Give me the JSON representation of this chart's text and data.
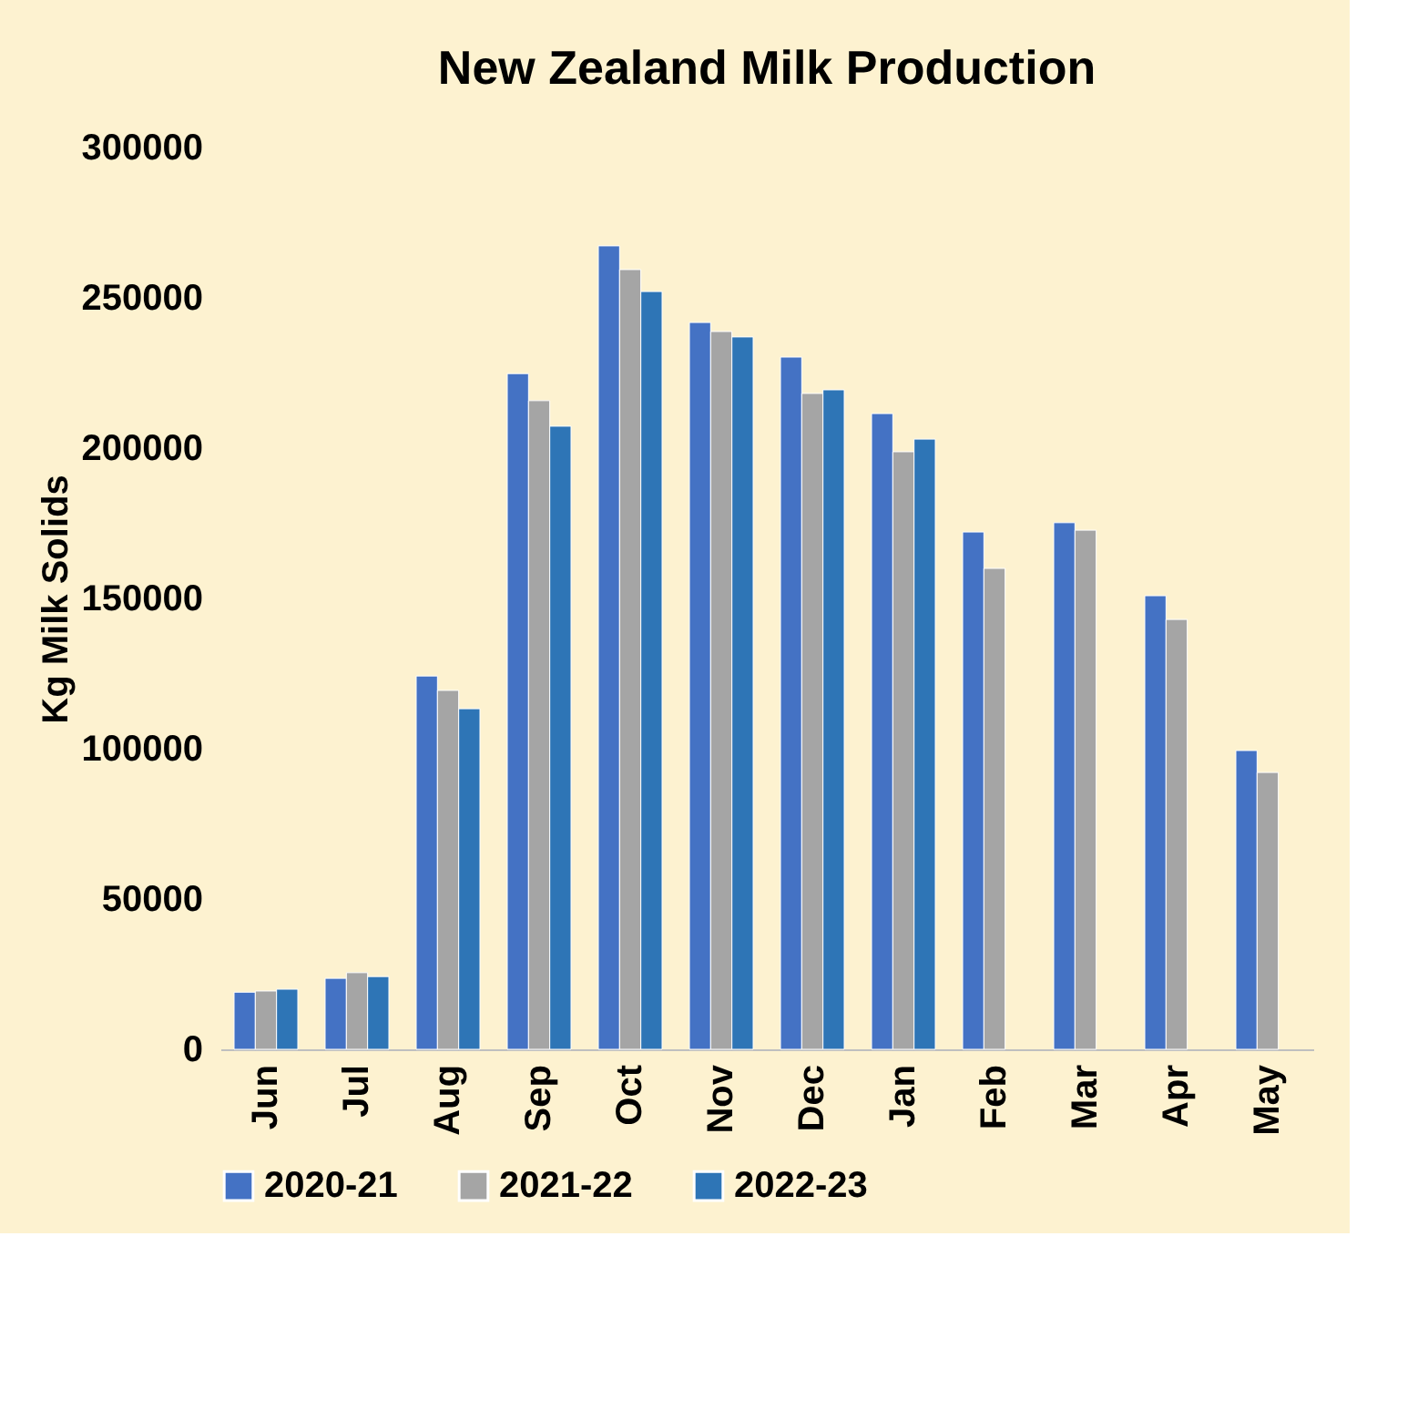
{
  "chart_data": {
    "type": "bar",
    "title": "New Zealand Milk Production",
    "ylabel": "Kg Milk Solids",
    "categories": [
      "Jun",
      "Jul",
      "Aug",
      "Sep",
      "Oct",
      "Nov",
      "Dec",
      "Jan",
      "Feb",
      "Mar",
      "Apr",
      "May"
    ],
    "series": [
      {
        "name": "2020-21",
        "color": "#4472c4",
        "values": [
          19000,
          23600,
          124200,
          224800,
          267300,
          241800,
          230300,
          211500,
          172100,
          175200,
          150900,
          99400
        ]
      },
      {
        "name": "2021-22",
        "color": "#a5a5a5",
        "values": [
          19400,
          25500,
          119400,
          215800,
          259400,
          238800,
          218200,
          198800,
          160000,
          172700,
          143000,
          92100
        ]
      },
      {
        "name": "2022-23",
        "color": "#2e75b6",
        "values": [
          20000,
          24200,
          113300,
          207300,
          252100,
          237000,
          219400,
          203000,
          null,
          null,
          null,
          null
        ]
      }
    ],
    "ylim": [
      0,
      300000
    ],
    "yticks": [
      0,
      50000,
      100000,
      150000,
      200000,
      250000,
      300000
    ],
    "grid": false,
    "legend": "bottom"
  }
}
